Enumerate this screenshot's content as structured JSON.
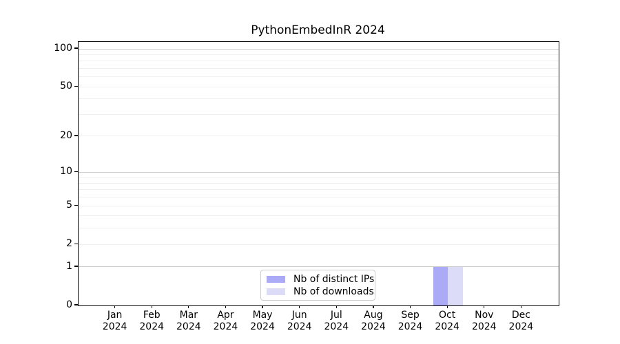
{
  "title": "PythonEmbedInR 2024",
  "colors": {
    "distinct_ips": "#aaaaf7",
    "downloads": "#dcdcf9",
    "grid_major": "#cdcdcd",
    "grid_minor": "#f0f0f0",
    "axis": "#000000",
    "legend_border": "#cccccc",
    "background": "#ffffff"
  },
  "legend": {
    "items": [
      {
        "label": "Nb of distinct IPs",
        "color": "#aaaaf7"
      },
      {
        "label": "Nb of downloads",
        "color": "#dcdcf9"
      }
    ]
  },
  "chart_data": {
    "type": "bar",
    "title": "PythonEmbedInR 2024",
    "categories": [
      "Jan 2024",
      "Feb 2024",
      "Mar 2024",
      "Apr 2024",
      "May 2024",
      "Jun 2024",
      "Jul 2024",
      "Aug 2024",
      "Sep 2024",
      "Oct 2024",
      "Nov 2024",
      "Dec 2024"
    ],
    "series": [
      {
        "name": "Nb of distinct IPs",
        "color": "#aaaaf7",
        "values": [
          0,
          0,
          0,
          0,
          0,
          0,
          0,
          0,
          0,
          1,
          0,
          0
        ]
      },
      {
        "name": "Nb of downloads",
        "color": "#dcdcf9",
        "values": [
          0,
          0,
          0,
          0,
          0,
          0,
          0,
          0,
          0,
          1,
          0,
          0
        ]
      }
    ],
    "xlabel": "",
    "ylabel": "",
    "yscale": "log1p",
    "yticks": [
      0,
      1,
      2,
      5,
      10,
      20,
      50,
      100
    ],
    "ylim": [
      0,
      113
    ],
    "grid": "horizontal, major and minor log lines",
    "legend_position": "lower center"
  }
}
